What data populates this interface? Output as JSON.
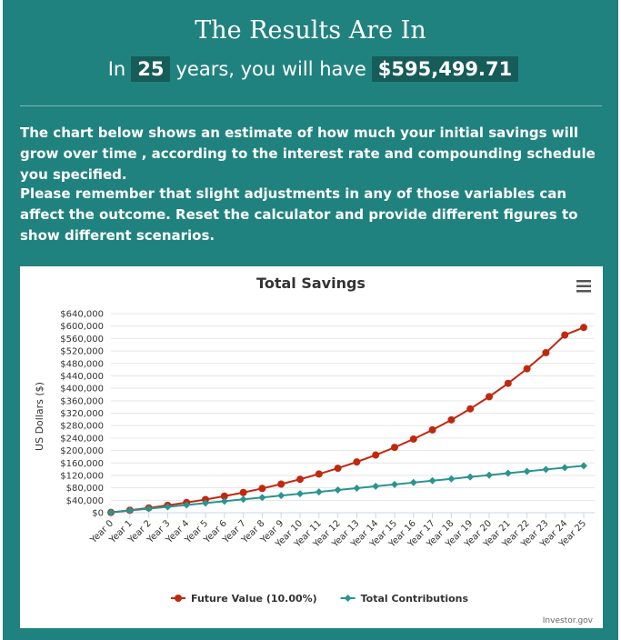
{
  "header": {
    "title": "The Results Are In",
    "summary_prefix": "In",
    "years": "25",
    "summary_middle": "years, you will have",
    "amount": "$595,499.71"
  },
  "body": {
    "paragraph1": "The chart below shows an estimate of how much your initial savings will grow over time , according to the interest rate and compounding schedule you specified.",
    "paragraph2": "Please remember that slight adjustments in any of those variables can affect the outcome. Reset the calculator and provide different figures to show different scenarios."
  },
  "chart_data": {
    "type": "line",
    "title": "Total Savings",
    "ylabel": "US Dollars ($)",
    "xlabel": "",
    "ylim": [
      0,
      640000
    ],
    "ytick_step": 40000,
    "yticks": [
      "$0",
      "$40,000",
      "$80,000",
      "$120,000",
      "$160,000",
      "$200,000",
      "$240,000",
      "$280,000",
      "$320,000",
      "$360,000",
      "$400,000",
      "$440,000",
      "$480,000",
      "$520,000",
      "$560,000",
      "$600,000",
      "$640,000"
    ],
    "categories": [
      "Year 0",
      "Year 1",
      "Year 2",
      "Year 3",
      "Year 4",
      "Year 5",
      "Year 6",
      "Year 7",
      "Year 8",
      "Year 9",
      "Year 10",
      "Year 11",
      "Year 12",
      "Year 13",
      "Year 14",
      "Year 15",
      "Year 16",
      "Year 17",
      "Year 18",
      "Year 19",
      "Year 20",
      "Year 21",
      "Year 22",
      "Year 23",
      "Year 24",
      "Year 25"
    ],
    "series": [
      {
        "name": "Future Value (10.00%)",
        "color": "#c0280f",
        "values": [
          1000,
          8000,
          15500,
          23700,
          32700,
          42500,
          53300,
          65000,
          78000,
          92100,
          107500,
          124500,
          143000,
          163300,
          185500,
          210000,
          236800,
          266200,
          298500,
          334000,
          373000,
          415800,
          462800,
          514500,
          571300,
          595500
        ]
      },
      {
        "name": "Total Contributions",
        "color": "#2a9490",
        "values": [
          1000,
          7000,
          13000,
          19000,
          25000,
          31000,
          37000,
          43000,
          49000,
          55000,
          61000,
          67000,
          73000,
          79000,
          85000,
          91000,
          97000,
          103000,
          109000,
          115000,
          121000,
          127000,
          133000,
          139000,
          145000,
          151000
        ]
      }
    ],
    "legend_position": "bottom",
    "credit": "Investor.gov",
    "grid": true
  },
  "menu_icon": "hamburger-menu-icon"
}
